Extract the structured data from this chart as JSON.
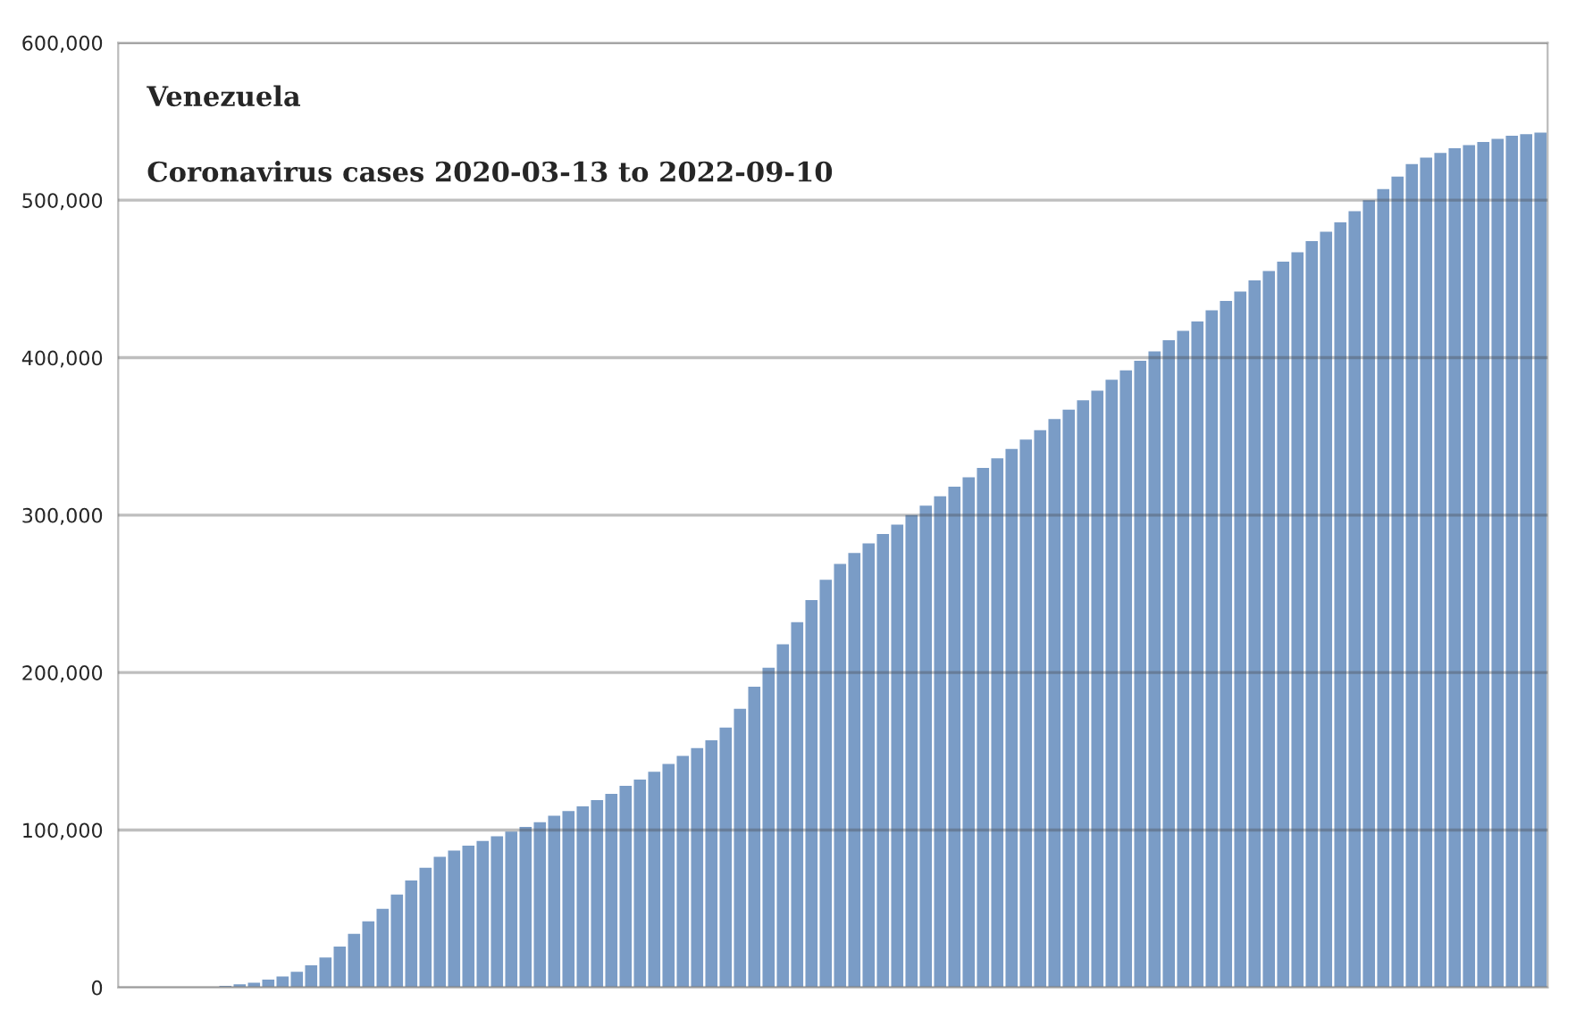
{
  "chart_data": {
    "type": "bar",
    "title": "Venezuela",
    "subtitle": "Coronavirus cases 2020-03-13 to 2022-09-10",
    "categories": [
      null,
      null,
      null,
      null,
      null,
      null,
      null,
      null,
      null,
      null,
      null,
      null,
      null,
      null,
      null,
      null,
      null,
      null,
      null,
      null,
      null,
      null,
      null,
      null,
      null,
      null,
      null,
      null,
      null,
      null,
      null,
      null,
      null,
      null,
      null,
      null,
      null,
      null,
      null,
      null,
      null,
      null,
      null,
      null,
      null,
      null,
      null,
      null,
      null,
      null,
      null,
      null,
      null,
      null,
      null,
      null,
      null,
      null,
      null,
      null,
      null,
      null,
      null,
      null,
      null,
      null,
      null,
      null,
      null,
      null,
      null,
      null,
      null,
      null,
      null,
      null,
      null,
      null,
      null,
      null,
      null,
      null,
      null,
      null,
      null,
      null,
      null,
      null,
      null,
      null,
      null,
      null,
      null,
      null,
      null,
      null,
      null,
      null,
      null,
      null
    ],
    "values": [
      0,
      0,
      0,
      0,
      0,
      0,
      500,
      1000,
      2000,
      3000,
      5000,
      7000,
      10000,
      14000,
      19000,
      26000,
      34000,
      42000,
      50000,
      59000,
      68000,
      76000,
      83000,
      87000,
      90000,
      93000,
      96000,
      99000,
      102000,
      105000,
      109000,
      112000,
      115000,
      119000,
      123000,
      128000,
      132000,
      137000,
      142000,
      147000,
      152000,
      157000,
      165000,
      177000,
      191000,
      203000,
      218000,
      232000,
      246000,
      259000,
      269000,
      276000,
      282000,
      288000,
      294000,
      300000,
      306000,
      312000,
      318000,
      324000,
      330000,
      336000,
      342000,
      348000,
      354000,
      361000,
      367000,
      373000,
      379000,
      386000,
      392000,
      398000,
      404000,
      411000,
      417000,
      423000,
      430000,
      436000,
      442000,
      449000,
      455000,
      461000,
      467000,
      474000,
      480000,
      486000,
      493000,
      500000,
      507000,
      515000,
      523000,
      527000,
      530000,
      533000,
      535000,
      537000,
      539000,
      541000,
      542000,
      543000
    ],
    "color": "#7a9cc6",
    "ylim": [
      0,
      600000
    ],
    "yticks": [
      {
        "value": 0,
        "label": "0"
      },
      {
        "value": 100000,
        "label": "100,000"
      },
      {
        "value": 200000,
        "label": "200,000"
      },
      {
        "value": 300000,
        "label": "300,000"
      },
      {
        "value": 400000,
        "label": "400,000"
      },
      {
        "value": 500000,
        "label": "500,000"
      },
      {
        "value": 600000,
        "label": "600,000"
      }
    ],
    "grid": "y"
  }
}
